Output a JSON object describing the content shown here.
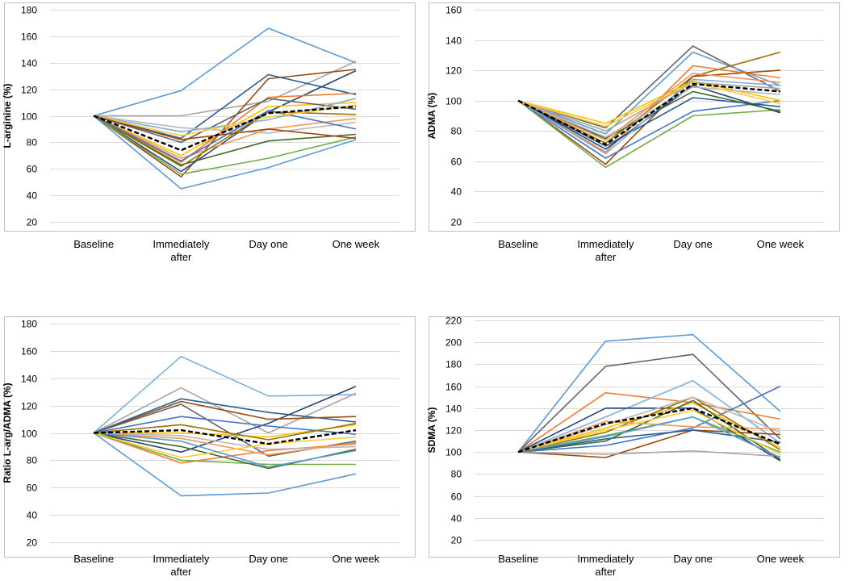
{
  "colors": {
    "palette": [
      "#5b9bd5",
      "#ed7d31",
      "#a5a5a5",
      "#ffc000",
      "#4472c4",
      "#70ad47",
      "#255e91",
      "#9e480e",
      "#636363",
      "#997300",
      "#264478",
      "#43682b",
      "#7cafdd",
      "#f1975a",
      "#b7b7b7",
      "#ffcd33"
    ],
    "mean": "#000000",
    "grid": "#d9d9d9",
    "frame": "#bfbfbf"
  },
  "chart_data": [
    {
      "type": "line",
      "ylabel": "L-arginine (%)",
      "categories": [
        "Baseline",
        "Immediately after",
        "Day one",
        "One week"
      ],
      "ylim": [
        20,
        180
      ],
      "ystep": 20,
      "series": [
        {
          "name": "s1",
          "color": "#5b9bd5",
          "values": [
            100,
            119,
            166,
            140
          ]
        },
        {
          "name": "s2",
          "color": "#5b9bd5",
          "values": [
            100,
            45,
            61,
            82
          ]
        },
        {
          "name": "s3",
          "color": "#a5a5a5",
          "values": [
            100,
            100,
            111,
            141
          ]
        },
        {
          "name": "s4",
          "color": "#9e480e",
          "values": [
            100,
            54,
            128,
            135
          ]
        },
        {
          "name": "s5",
          "color": "#255e91",
          "values": [
            100,
            83,
            131,
            116
          ]
        },
        {
          "name": "s6",
          "color": "#264478",
          "values": [
            100,
            58,
            103,
            134
          ]
        },
        {
          "name": "s7",
          "color": "#ed7d31",
          "values": [
            100,
            65,
            114,
            117
          ]
        },
        {
          "name": "s8",
          "color": "#ffc000",
          "values": [
            100,
            70,
            107,
            110
          ]
        },
        {
          "name": "s9",
          "color": "#70ad47",
          "values": [
            100,
            56,
            68,
            84
          ]
        },
        {
          "name": "s10",
          "color": "#43682b",
          "values": [
            100,
            63,
            81,
            86
          ]
        },
        {
          "name": "s11",
          "color": "#636363",
          "values": [
            100,
            80,
            113,
            105
          ]
        },
        {
          "name": "s12",
          "color": "#7cafdd",
          "values": [
            100,
            88,
            97,
            113
          ]
        },
        {
          "name": "s13",
          "color": "#b7b7b7",
          "values": [
            100,
            91,
            87,
            95
          ]
        },
        {
          "name": "s14",
          "color": "#f1975a",
          "values": [
            100,
            68,
            90,
            98
          ]
        },
        {
          "name": "s15",
          "color": "#997300",
          "values": [
            100,
            62,
            103,
            101
          ]
        },
        {
          "name": "s16",
          "color": "#4472c4",
          "values": [
            100,
            66,
            104,
            90
          ]
        },
        {
          "name": "s17",
          "color": "#ffcd33",
          "values": [
            100,
            85,
            99,
            108
          ]
        },
        {
          "name": "s18",
          "color": "#9e480e",
          "values": [
            100,
            82,
            90,
            83
          ]
        }
      ],
      "mean": [
        100,
        74,
        102,
        107
      ]
    },
    {
      "type": "line",
      "ylabel": "ADMA (%)",
      "categories": [
        "Baseline",
        "Immediately after",
        "Day one",
        "One week"
      ],
      "ylim": [
        20,
        160
      ],
      "ystep": 20,
      "series": [
        {
          "name": "s1",
          "color": "#636363",
          "values": [
            100,
            82,
            136,
            106
          ]
        },
        {
          "name": "s2",
          "color": "#5b9bd5",
          "values": [
            100,
            78,
            132,
            110
          ]
        },
        {
          "name": "s3",
          "color": "#997300",
          "values": [
            100,
            72,
            116,
            132
          ]
        },
        {
          "name": "s4",
          "color": "#9e480e",
          "values": [
            100,
            58,
            116,
            120
          ]
        },
        {
          "name": "s5",
          "color": "#ed7d31",
          "values": [
            100,
            66,
            123,
            115
          ]
        },
        {
          "name": "s6",
          "color": "#70ad47",
          "values": [
            100,
            56,
            90,
            94
          ]
        },
        {
          "name": "s7",
          "color": "#4472c4",
          "values": [
            100,
            62,
            93,
            100
          ]
        },
        {
          "name": "s8",
          "color": "#255e91",
          "values": [
            100,
            70,
            102,
            96
          ]
        },
        {
          "name": "s9",
          "color": "#ffc000",
          "values": [
            100,
            85,
            113,
            100
          ]
        },
        {
          "name": "s10",
          "color": "#a5a5a5",
          "values": [
            100,
            80,
            112,
            108
          ]
        },
        {
          "name": "s11",
          "color": "#264478",
          "values": [
            100,
            68,
            110,
            92
          ]
        },
        {
          "name": "s12",
          "color": "#43682b",
          "values": [
            100,
            75,
            106,
            93
          ]
        },
        {
          "name": "s13",
          "color": "#7cafdd",
          "values": [
            100,
            65,
            114,
            110
          ]
        },
        {
          "name": "s14",
          "color": "#b7b7b7",
          "values": [
            100,
            76,
            109,
            104
          ]
        },
        {
          "name": "s15",
          "color": "#ffcd33",
          "values": [
            100,
            83,
            112,
            98
          ]
        },
        {
          "name": "s16",
          "color": "#f1975a",
          "values": [
            100,
            74,
            118,
            112
          ]
        }
      ],
      "mean": [
        100,
        71,
        111,
        106
      ]
    },
    {
      "type": "line",
      "ylabel": "Ratio L-arg/ADMA (%)",
      "categories": [
        "Baseline",
        "Immediately after",
        "Day one",
        "One week"
      ],
      "ylim": [
        20,
        180
      ],
      "ystep": 20,
      "series": [
        {
          "name": "s1",
          "color": "#7cafdd",
          "values": [
            100,
            156,
            127,
            128
          ]
        },
        {
          "name": "s2",
          "color": "#5b9bd5",
          "values": [
            100,
            54,
            56,
            70
          ]
        },
        {
          "name": "s3",
          "color": "#a5a5a5",
          "values": [
            100,
            133,
            100,
            129
          ]
        },
        {
          "name": "s4",
          "color": "#255e91",
          "values": [
            100,
            125,
            115,
            108
          ]
        },
        {
          "name": "s5",
          "color": "#264478",
          "values": [
            100,
            86,
            107,
            134
          ]
        },
        {
          "name": "s6",
          "color": "#9e480e",
          "values": [
            100,
            123,
            110,
            112
          ]
        },
        {
          "name": "s7",
          "color": "#636363",
          "values": [
            100,
            121,
            83,
            94
          ]
        },
        {
          "name": "s8",
          "color": "#ed7d31",
          "values": [
            100,
            78,
            87,
            92
          ]
        },
        {
          "name": "s9",
          "color": "#70ad47",
          "values": [
            100,
            80,
            77,
            77
          ]
        },
        {
          "name": "s10",
          "color": "#43682b",
          "values": [
            100,
            90,
            74,
            88
          ]
        },
        {
          "name": "s11",
          "color": "#ffc000",
          "values": [
            100,
            100,
            97,
            106
          ]
        },
        {
          "name": "s12",
          "color": "#4472c4",
          "values": [
            100,
            112,
            105,
            99
          ]
        },
        {
          "name": "s13",
          "color": "#997300",
          "values": [
            100,
            106,
            95,
            107
          ]
        },
        {
          "name": "s14",
          "color": "#b7b7b7",
          "values": [
            100,
            98,
            88,
            90
          ]
        },
        {
          "name": "s15",
          "color": "#f1975a",
          "values": [
            100,
            96,
            84,
            93
          ]
        },
        {
          "name": "s16",
          "color": "#ffcd33",
          "values": [
            100,
            82,
            92,
            97
          ]
        },
        {
          "name": "s17",
          "color": "#5b9bd5",
          "values": [
            100,
            94,
            75,
            87
          ]
        }
      ],
      "mean": [
        100,
        102,
        92,
        102
      ]
    },
    {
      "type": "line",
      "ylabel": "SDMA (%)",
      "categories": [
        "Baseline",
        "Immediately after",
        "Day one",
        "One week"
      ],
      "ylim": [
        20,
        220
      ],
      "ystep": 20,
      "series": [
        {
          "name": "s1",
          "color": "#5b9bd5",
          "values": [
            100,
            201,
            207,
            137
          ]
        },
        {
          "name": "s2",
          "color": "#636363",
          "values": [
            100,
            178,
            189,
            112
          ]
        },
        {
          "name": "s3",
          "color": "#ed7d31",
          "values": [
            100,
            154,
            145,
            130
          ]
        },
        {
          "name": "s4",
          "color": "#7cafdd",
          "values": [
            100,
            132,
            165,
            108
          ]
        },
        {
          "name": "s5",
          "color": "#264478",
          "values": [
            100,
            140,
            140,
            92
          ]
        },
        {
          "name": "s6",
          "color": "#4472c4",
          "values": [
            100,
            106,
            122,
            160
          ]
        },
        {
          "name": "s7",
          "color": "#9e480e",
          "values": [
            100,
            95,
            120,
            116
          ]
        },
        {
          "name": "s8",
          "color": "#a5a5a5",
          "values": [
            100,
            98,
            101,
            96
          ]
        },
        {
          "name": "s9",
          "color": "#70ad47",
          "values": [
            100,
            115,
            132,
            100
          ]
        },
        {
          "name": "s10",
          "color": "#ffc000",
          "values": [
            100,
            122,
            145,
            104
          ]
        },
        {
          "name": "s11",
          "color": "#43682b",
          "values": [
            100,
            110,
            147,
            93
          ]
        },
        {
          "name": "s12",
          "color": "#255e91",
          "values": [
            100,
            112,
            120,
            109
          ]
        },
        {
          "name": "s13",
          "color": "#997300",
          "values": [
            100,
            118,
            150,
            102
          ]
        },
        {
          "name": "s14",
          "color": "#b7b7b7",
          "values": [
            100,
            125,
            150,
            118
          ]
        },
        {
          "name": "s15",
          "color": "#f1975a",
          "values": [
            100,
            128,
            123,
            121
          ]
        },
        {
          "name": "s16",
          "color": "#ffcd33",
          "values": [
            100,
            120,
            138,
            98
          ]
        },
        {
          "name": "s17",
          "color": "#5b9bd5",
          "values": [
            100,
            114,
            132,
            95
          ]
        }
      ],
      "mean": [
        100,
        126,
        140,
        107
      ]
    }
  ]
}
